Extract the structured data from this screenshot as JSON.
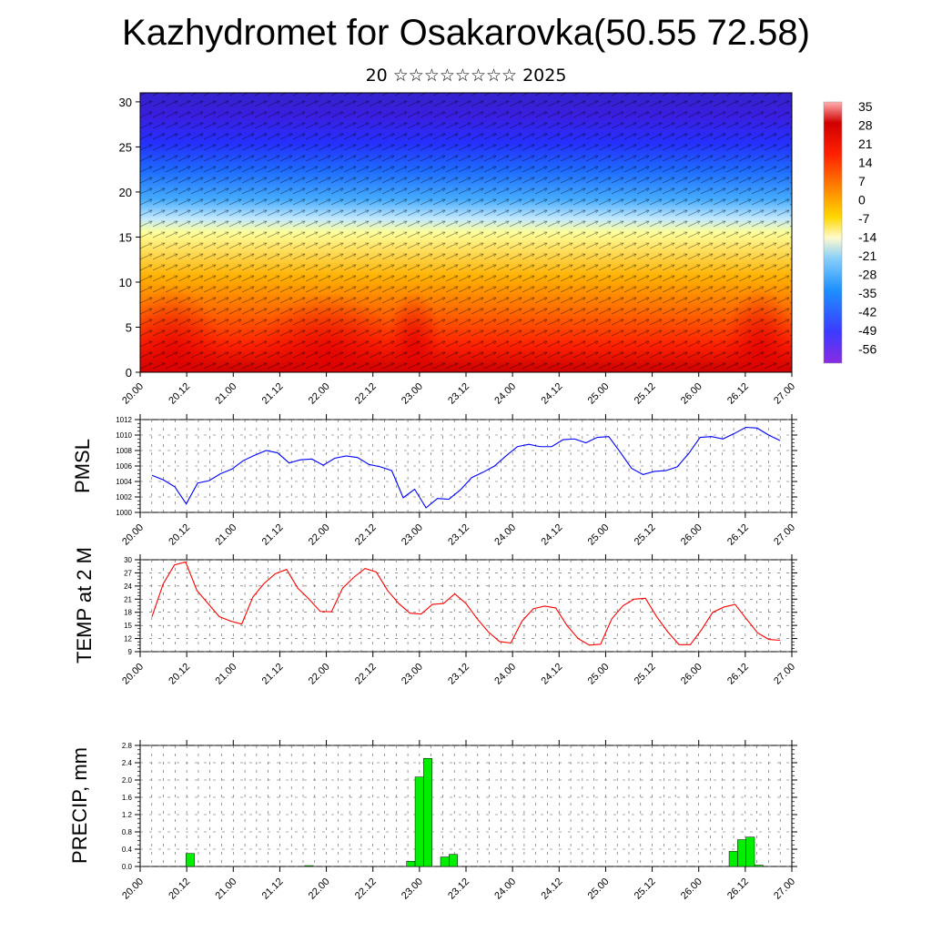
{
  "page": {
    "title": "Kazhydromet for Osakarovka(50.55 72.58)",
    "subtitle": "20 ☆☆☆☆☆☆☆☆ 2025"
  },
  "chart_data": [
    {
      "type": "heatmap",
      "name": "vertical temperature and wind section",
      "x_tick_labels": [
        "20.00",
        "20.12",
        "21.00",
        "21.12",
        "22.00",
        "22.12",
        "23.00",
        "23.12",
        "24.00",
        "24.12",
        "25.00",
        "25.12",
        "26.00",
        "26.12",
        "27.00"
      ],
      "y_tick_labels": [
        "0",
        "5",
        "10",
        "15",
        "20",
        "25",
        "30"
      ],
      "ylim": [
        0,
        31
      ],
      "colorbar_labels": [
        "35",
        "28",
        "21",
        "14",
        "7",
        "0",
        "-7",
        "-14",
        "-21",
        "-28",
        "-35",
        "-42",
        "-49",
        "-56"
      ],
      "colors": {
        "high": "#ff0000",
        "mid": "#ffff66",
        "low": "#3333ff"
      }
    },
    {
      "type": "line",
      "ylabel": "PMSL",
      "ylim": [
        1000,
        1012
      ],
      "y_tick_labels": [
        "1000",
        "1002",
        "1004",
        "1006",
        "1008",
        "1010",
        "1012"
      ],
      "x_tick_labels": [
        "20.00",
        "20.12",
        "21.00",
        "21.12",
        "22.00",
        "22.12",
        "23.00",
        "23.12",
        "24.00",
        "24.12",
        "25.00",
        "25.12",
        "26.00",
        "26.12",
        "27.00"
      ],
      "color": "#0000ff",
      "values": [
        1004.8,
        1004.2,
        1003.3,
        1001.1,
        1003.8,
        1004.1,
        1005.0,
        1005.6,
        1006.7,
        1007.4,
        1008.0,
        1007.7,
        1006.4,
        1006.8,
        1006.9,
        1006.1,
        1007.0,
        1007.3,
        1007.1,
        1006.2,
        1005.9,
        1005.4,
        1001.9,
        1003.0,
        1000.6,
        1001.8,
        1001.7,
        1002.9,
        1004.5,
        1005.2,
        1006.0,
        1007.3,
        1008.5,
        1008.8,
        1008.5,
        1008.5,
        1009.4,
        1009.5,
        1009.0,
        1009.7,
        1009.8,
        1007.8,
        1005.7,
        1004.9,
        1005.3,
        1005.4,
        1005.9,
        1007.6,
        1009.7,
        1009.8,
        1009.5,
        1010.2,
        1011.0,
        1010.9,
        1010.0,
        1009.3
      ]
    },
    {
      "type": "line",
      "ylabel": "TEMP at 2 M",
      "ylim": [
        9,
        30
      ],
      "y_tick_labels": [
        "9",
        "12",
        "15",
        "18",
        "21",
        "24",
        "27",
        "30"
      ],
      "x_tick_labels": [
        "20.00",
        "20.12",
        "21.00",
        "21.12",
        "22.00",
        "22.12",
        "23.00",
        "23.12",
        "24.00",
        "24.12",
        "25.00",
        "25.12",
        "26.00",
        "26.12",
        "27.00"
      ],
      "color": "#ff0000",
      "values": [
        17.0,
        24.5,
        28.8,
        29.5,
        23.0,
        20.0,
        17.0,
        16.0,
        15.3,
        21.5,
        24.6,
        26.8,
        27.8,
        23.5,
        21.0,
        18.2,
        18.1,
        23.5,
        26.0,
        28.0,
        27.2,
        23.0,
        20.0,
        17.8,
        17.6,
        19.8,
        20.0,
        22.2,
        20.0,
        16.5,
        13.5,
        11.3,
        11.0,
        16.0,
        18.8,
        19.4,
        19.0,
        15.0,
        12.0,
        10.5,
        10.7,
        16.5,
        19.5,
        21.0,
        21.2,
        17.0,
        13.5,
        10.6,
        10.6,
        14.0,
        18.0,
        19.2,
        19.8,
        16.5,
        13.3,
        11.8,
        11.6
      ]
    },
    {
      "type": "bar",
      "ylabel": "PRECIP, mm",
      "ylim": [
        0,
        2.8
      ],
      "y_tick_labels": [
        "0.0",
        "0.4",
        "0.8",
        "1.2",
        "1.6",
        "2.0",
        "2.4",
        "2.8"
      ],
      "x_tick_labels": [
        "20.00",
        "20.12",
        "21.00",
        "21.12",
        "22.00",
        "22.12",
        "23.00",
        "23.12",
        "24.00",
        "24.12",
        "25.00",
        "25.12",
        "26.00",
        "26.12",
        "27.00"
      ],
      "color": "#00ee00",
      "values": [
        0,
        0,
        0,
        0,
        0.3,
        0,
        0,
        0,
        0,
        0,
        0,
        0,
        0,
        0,
        0,
        0,
        0,
        0,
        0.02,
        0,
        0,
        0,
        0,
        0,
        0,
        0,
        0,
        0,
        0,
        0,
        0.12,
        2.07,
        2.5,
        0,
        0.22,
        0.28,
        0,
        0,
        0,
        0,
        0,
        0,
        0,
        0,
        0,
        0,
        0,
        0,
        0,
        0,
        0,
        0,
        0,
        0,
        0,
        0,
        0,
        0,
        0,
        0,
        0,
        0,
        0,
        0,
        0,
        0,
        0,
        0,
        0.35,
        0.62,
        0.68,
        0.03,
        0,
        0
      ]
    }
  ]
}
